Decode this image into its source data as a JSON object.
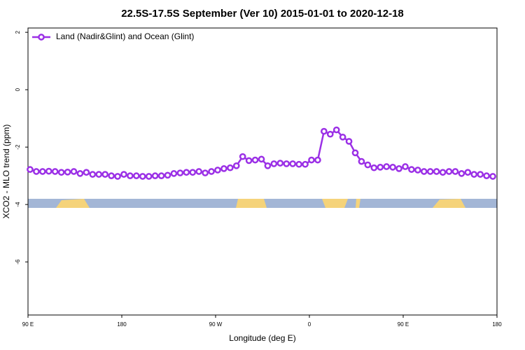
{
  "chart_data": {
    "type": "line",
    "title": "22.5S-17.5S September (Ver 10)   2015-01-01 to 2020-12-18",
    "x_label": "Longitude (deg E)",
    "y_label": "XCO2 - MLO trend (ppm)",
    "x": [
      92,
      98,
      104,
      110,
      116,
      122,
      128,
      134,
      140,
      146,
      152,
      158,
      164,
      170,
      176,
      182,
      188,
      194,
      200,
      206,
      212,
      218,
      224,
      230,
      236,
      242,
      248,
      254,
      260,
      266,
      272,
      278,
      284,
      290,
      296,
      302,
      308,
      314,
      320,
      326,
      332,
      338,
      344,
      350,
      356,
      362,
      368,
      374,
      380,
      386,
      392,
      398,
      404,
      410,
      416,
      422,
      428,
      434,
      440,
      446,
      452,
      458,
      464,
      470,
      476,
      482,
      488,
      494,
      500,
      506,
      512,
      518,
      524,
      530,
      536
    ],
    "series": [
      {
        "name": "Land (Nadir&Glint) and Ocean (Glint)",
        "color": "#9b30e6",
        "values": [
          -2.78,
          -2.85,
          -2.85,
          -2.84,
          -2.85,
          -2.88,
          -2.87,
          -2.85,
          -2.92,
          -2.88,
          -2.95,
          -2.95,
          -2.95,
          -3.0,
          -3.02,
          -2.95,
          -3.0,
          -3.0,
          -3.02,
          -3.02,
          -3.0,
          -3.0,
          -2.98,
          -2.92,
          -2.9,
          -2.88,
          -2.88,
          -2.85,
          -2.9,
          -2.85,
          -2.8,
          -2.75,
          -2.72,
          -2.65,
          -2.33,
          -2.47,
          -2.45,
          -2.42,
          -2.65,
          -2.58,
          -2.56,
          -2.58,
          -2.58,
          -2.6,
          -2.6,
          -2.45,
          -2.45,
          -1.45,
          -1.55,
          -1.4,
          -1.65,
          -1.8,
          -2.2,
          -2.5,
          -2.62,
          -2.72,
          -2.7,
          -2.68,
          -2.7,
          -2.75,
          -2.68,
          -2.78,
          -2.8,
          -2.85,
          -2.85,
          -2.85,
          -2.88,
          -2.85,
          -2.85,
          -2.92,
          -2.88,
          -2.95,
          -2.95,
          -3.0,
          -3.02
        ]
      }
    ],
    "xlim": [
      90,
      540
    ],
    "xticks": [
      {
        "value": 90,
        "label": "90 E"
      },
      180,
      {
        "value": 270,
        "label": "90 W"
      },
      {
        "value": 360,
        "label": "0"
      },
      {
        "value": 450,
        "label": "90 E"
      },
      {
        "value": 540,
        "label": "180"
      }
    ],
    "ylim": [
      -7.85,
      2.15
    ],
    "yticks": [
      2,
      0,
      -2,
      -4,
      -6
    ],
    "legend": "top-left"
  }
}
